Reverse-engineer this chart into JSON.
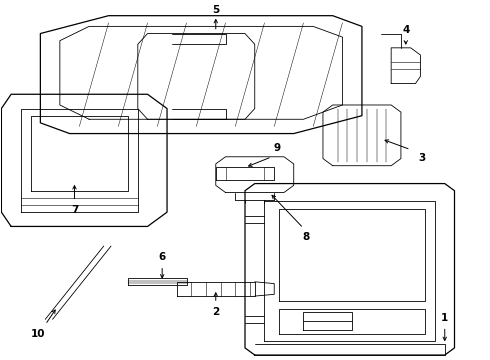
{
  "bg_color": "#ffffff",
  "line_color": "#000000",
  "figsize": [
    4.9,
    3.6
  ],
  "dpi": 100,
  "lw_thin": 0.6,
  "lw_med": 0.9,
  "lw_thick": 1.2,
  "label_fontsize": 7.5
}
